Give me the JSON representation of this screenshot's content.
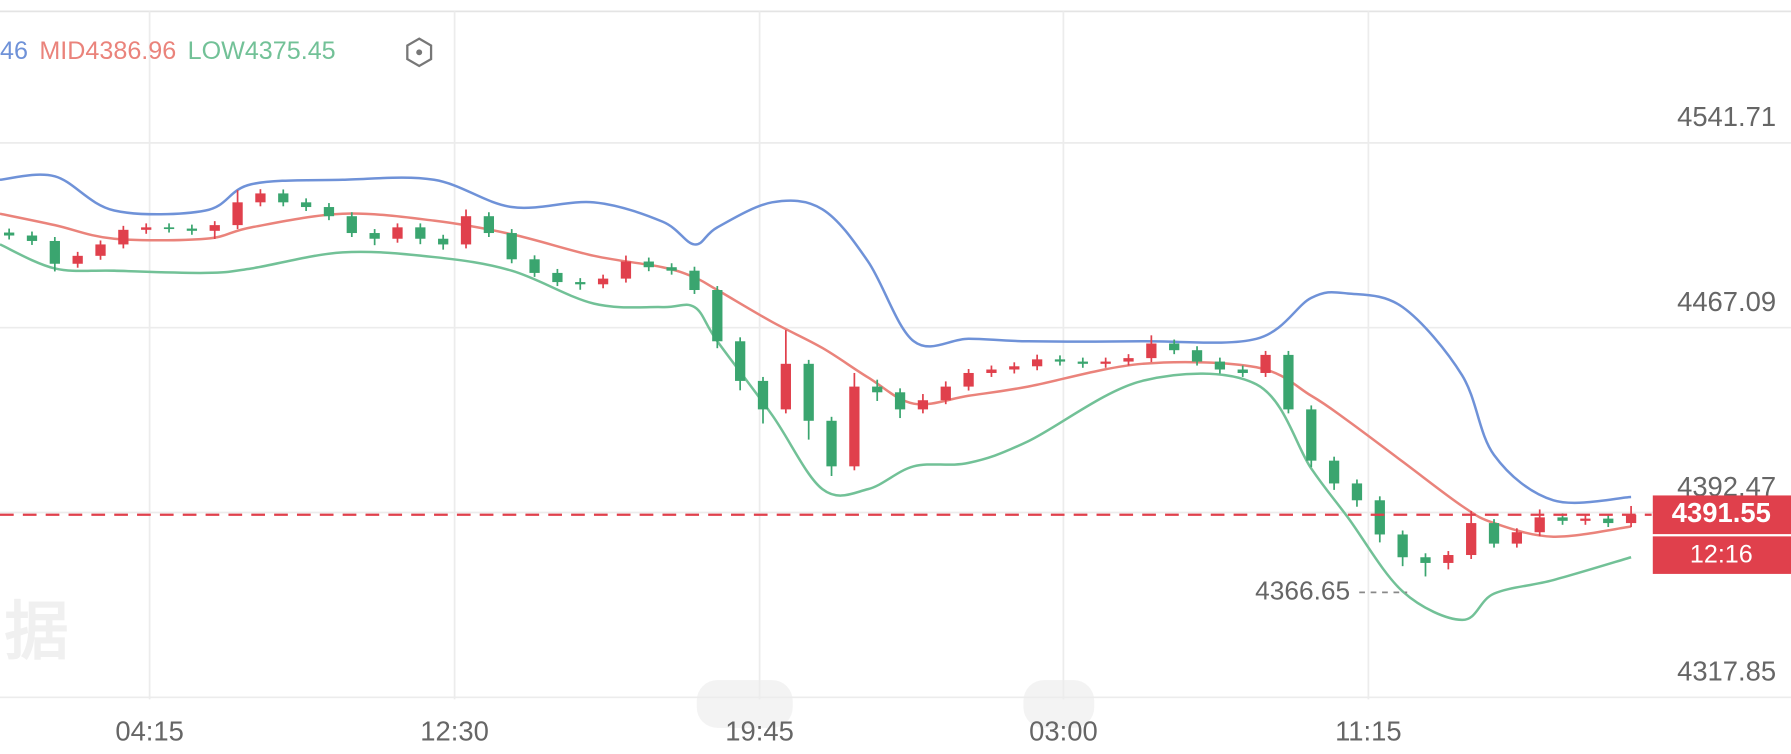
{
  "chart_data": {
    "type": "candlestick",
    "categories": [
      null,
      null,
      null,
      null,
      null,
      null,
      null,
      null,
      null,
      null,
      null,
      null,
      null,
      null,
      null,
      null,
      null,
      null,
      null,
      null,
      null,
      null,
      null,
      null,
      null,
      null,
      null,
      null,
      null,
      null,
      null,
      null,
      null,
      null,
      null,
      null,
      null,
      null,
      null,
      null,
      null,
      null,
      null,
      null,
      null,
      null,
      null,
      null,
      null,
      null,
      null,
      null,
      null,
      null,
      null,
      null,
      null,
      null,
      null,
      null,
      null,
      null,
      null,
      null,
      null,
      null,
      null,
      null,
      null,
      null,
      null,
      null
    ],
    "open": [
      4505.5,
      4504.3,
      4502.1,
      4492.9,
      4496.1,
      4500.7,
      4506.6,
      4507.6,
      4507.1,
      4506.2,
      4508.5,
      4517.7,
      4521.3,
      4517.7,
      4515.8,
      4512.1,
      4505.3,
      4503.0,
      4507.6,
      4503.0,
      4500.7,
      4512.1,
      4505.3,
      4494.7,
      4489.2,
      4485.5,
      4484.6,
      4486.9,
      4493.8,
      4491.5,
      4490.1,
      4482.3,
      4461.6,
      4445.6,
      4434.1,
      4452.5,
      4429.5,
      4411.1,
      4443.3,
      4441.0,
      4434.1,
      4437.8,
      4443.3,
      4448.8,
      4450.2,
      4451.5,
      4454.3,
      4453.4,
      4452.5,
      4453.4,
      4454.8,
      4460.7,
      4458.0,
      4453.4,
      4450.2,
      4448.8,
      4456.1,
      4434.1,
      4413.4,
      4404.2,
      4397.4,
      4383.6,
      4374.4,
      4372.1,
      4375.3,
      4388.2,
      4379.9,
      4384.5,
      4390.5,
      4389.1,
      4390.0,
      4388.2
    ],
    "high": [
      4507.1,
      4505.9,
      4503.7,
      4497.7,
      4502.3,
      4508.2,
      4509.2,
      4509.2,
      4508.7,
      4510.1,
      4522.6,
      4523.0,
      4522.9,
      4519.3,
      4517.4,
      4513.7,
      4506.9,
      4509.2,
      4509.2,
      4504.6,
      4514.8,
      4513.7,
      4506.9,
      4496.3,
      4490.8,
      4487.1,
      4488.5,
      4496.2,
      4495.4,
      4493.1,
      4491.7,
      4483.9,
      4463.2,
      4447.2,
      4466.1,
      4454.1,
      4431.1,
      4448.8,
      4446.1,
      4442.6,
      4440.3,
      4445.4,
      4450.4,
      4451.8,
      4453.1,
      4456.2,
      4455.9,
      4455.0,
      4455.0,
      4456.4,
      4464.0,
      4462.3,
      4459.6,
      4455.0,
      4451.8,
      4457.7,
      4457.7,
      4435.7,
      4415.0,
      4405.8,
      4399.0,
      4385.2,
      4376.0,
      4376.9,
      4393.1,
      4389.8,
      4386.1,
      4393.7,
      4392.1,
      4391.6,
      4391.6,
      4395.1
    ],
    "low": [
      4502.7,
      4500.5,
      4489.8,
      4491.3,
      4494.5,
      4499.1,
      4505.0,
      4505.5,
      4504.6,
      4502.9,
      4506.9,
      4516.1,
      4516.1,
      4514.2,
      4510.5,
      4503.7,
      4500.4,
      4501.4,
      4500.8,
      4498.6,
      4499.1,
      4503.7,
      4493.1,
      4487.6,
      4483.9,
      4482.4,
      4483.0,
      4485.3,
      4489.9,
      4488.5,
      4480.7,
      4458.8,
      4441.8,
      4428.4,
      4432.5,
      4421.9,
      4407.2,
      4409.5,
      4437.5,
      4430.6,
      4432.5,
      4436.2,
      4441.7,
      4447.2,
      4448.6,
      4449.9,
      4451.8,
      4450.9,
      4450.9,
      4451.8,
      4453.2,
      4456.4,
      4451.8,
      4448.6,
      4447.2,
      4447.2,
      4432.5,
      4410.8,
      4401.6,
      4394.8,
      4380.4,
      4370.8,
      4366.65,
      4369.5,
      4373.7,
      4378.3,
      4378.3,
      4382.9,
      4387.5,
      4387.5,
      4386.6,
      4386.6
    ],
    "close": [
      4504.3,
      4502.1,
      4492.9,
      4496.1,
      4500.7,
      4506.6,
      4507.6,
      4507.1,
      4506.2,
      4508.5,
      4517.7,
      4521.3,
      4517.7,
      4515.8,
      4512.1,
      4505.3,
      4503.0,
      4507.6,
      4503.0,
      4500.7,
      4512.1,
      4505.3,
      4494.7,
      4489.2,
      4485.5,
      4484.6,
      4486.9,
      4493.8,
      4491.5,
      4490.1,
      4482.3,
      4461.6,
      4445.6,
      4434.1,
      4452.5,
      4429.5,
      4411.1,
      4443.3,
      4441.0,
      4434.1,
      4437.8,
      4443.3,
      4448.8,
      4450.2,
      4451.5,
      4454.3,
      4453.4,
      4452.5,
      4453.4,
      4454.8,
      4460.7,
      4458.0,
      4453.4,
      4450.2,
      4448.8,
      4456.1,
      4434.1,
      4413.4,
      4404.2,
      4397.4,
      4383.6,
      4374.4,
      4372.1,
      4375.3,
      4388.2,
      4379.9,
      4384.5,
      4390.5,
      4389.1,
      4390.0,
      4388.2,
      4391.55
    ],
    "up_color": "#e0404c",
    "down_color": "#3aa56f",
    "series": [
      {
        "name": "46",
        "color": "#6f92d8",
        "x": [
          -0.4,
          2,
          4.6,
          8.6,
          10.6,
          14.6,
          18.6,
          22,
          25.6,
          28.6,
          30,
          31,
          33.4,
          35.6,
          37.6,
          39.6,
          42,
          44.6,
          49.6,
          54.6,
          57,
          58.6,
          61,
          63.6,
          65,
          67.6,
          71
        ],
        "values": [
          4526.8,
          4528.2,
          4514.4,
          4514.4,
          4525.0,
          4526.8,
          4526.8,
          4515.8,
          4517.7,
          4509.9,
          4500.7,
          4507.6,
          4517.7,
          4514.9,
          4493.8,
          4461.6,
          4462.6,
          4461.6,
          4461.6,
          4462.6,
          4479.1,
          4480.9,
          4475.4,
          4447.9,
          4415.7,
          4397.4,
          4398.7
        ]
      },
      {
        "name": "MID4386.96",
        "color": "#ea837b",
        "x": [
          -0.4,
          2,
          4.6,
          8.6,
          10.6,
          14.6,
          18.6,
          22,
          25.6,
          28.6,
          30,
          31,
          33.4,
          35.6,
          37.6,
          39.6,
          42,
          44.6,
          49.6,
          54.6,
          57,
          58.6,
          61,
          63.6,
          65,
          67.6,
          71
        ],
        "values": [
          4513.1,
          4508.5,
          4503.0,
          4503.0,
          4507.6,
          4513.1,
          4510.3,
          4504.8,
          4496.1,
          4491.5,
          4487.4,
          4482.3,
          4469.4,
          4458.9,
          4447.0,
          4436.4,
          4439.6,
          4443.3,
          4452.5,
          4451.1,
          4439.6,
          4429.5,
          4413.0,
          4395.1,
          4388.2,
          4382.7,
          4386.8
        ]
      },
      {
        "name": "LOW4375.45",
        "color": "#72c197",
        "x": [
          -0.4,
          2,
          4.6,
          8.6,
          10.6,
          14.6,
          18.6,
          22,
          25.6,
          28.6,
          30,
          31,
          33.4,
          35.6,
          37.6,
          39.6,
          42,
          44.6,
          49.6,
          54.6,
          57,
          58.6,
          61,
          63.6,
          65,
          67.6,
          71
        ],
        "values": [
          4500.7,
          4491.0,
          4490.1,
          4489.2,
          4491.0,
          4497.5,
          4495.6,
          4490.1,
          4476.8,
          4475.4,
          4475.4,
          4461.6,
          4431.8,
          4401.9,
          4401.9,
          4411.1,
          4412.5,
          4421.2,
          4445.6,
          4444.2,
          4410.2,
          4390.5,
          4360.6,
          4349.1,
          4359.7,
          4365.2,
          4374.4
        ]
      }
    ],
    "xlim": [
      -0.4,
      78
    ],
    "xticks": [
      {
        "value": 6.15,
        "label": "04:15"
      },
      {
        "value": 19.5,
        "label": "12:30"
      },
      {
        "value": 32.85,
        "label": "19:45"
      },
      {
        "value": 46.15,
        "label": "03:00"
      },
      {
        "value": 59.5,
        "label": "11:15"
      }
    ],
    "ylim": [
      4317.0,
      4594.8
    ],
    "yticks": [
      4317.85,
      4392.47,
      4467.09,
      4541.71
    ],
    "grid": true,
    "last_price": 4391.55,
    "last_price_color": "#e0404c",
    "countdown": "12:16",
    "low_annotation": 4366.65,
    "watermark": "据"
  }
}
